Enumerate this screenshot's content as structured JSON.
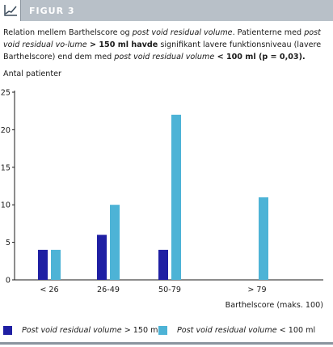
{
  "header": {
    "title": "FIGUR 3",
    "icon": "line-chart-icon"
  },
  "caption": {
    "t1": "Relation mellem Barthelscore og ",
    "t2": "post void residual volume",
    "t3": ". Patienterne med ",
    "t4": "post void residual vo-lume",
    "t5": " > 150 ml ",
    "t6": "havde",
    "t7": " signifikant lavere funktionsniveau (lavere Barthelscore) end dem med ",
    "t8": "post void residual volume",
    "t9": " < 100 ml (p = 0,03)."
  },
  "chart_data": {
    "type": "bar",
    "ylabel": "Antal patienter",
    "xlabel": "Barthelscore (maks. 100)",
    "categories": [
      "< 26",
      "26-49",
      "50-79",
      "> 79"
    ],
    "ylim": [
      0,
      25
    ],
    "yticks": [
      0,
      5,
      10,
      15,
      20,
      25
    ],
    "series": [
      {
        "name_italic": "Post void residual volume",
        "name_rest": " > 150 ml",
        "color": "#1f1fa3",
        "values": [
          4,
          6,
          4,
          0
        ]
      },
      {
        "name_italic": "Post void residual volume",
        "name_rest": " < 100 ml",
        "color": "#4db3d6",
        "values": [
          4,
          10,
          22,
          11
        ]
      }
    ],
    "grid": false,
    "legend_position": "bottom"
  },
  "colors": {
    "header_bg": "#b8c0c8",
    "axis": "#1a1a1a"
  }
}
